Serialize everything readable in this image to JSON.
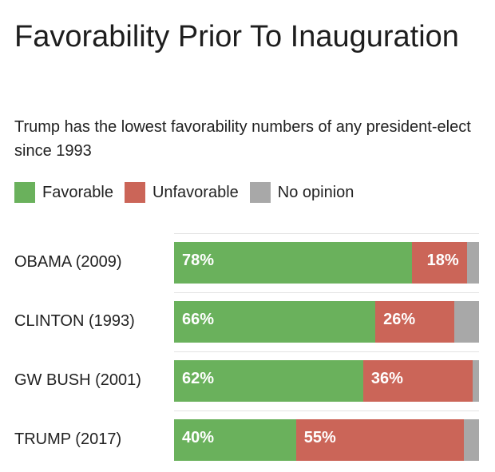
{
  "title": "Favorability Prior To Inauguration",
  "subtitle": "Trump has the lowest favorability numbers of any president-elect since 1993",
  "legend": [
    {
      "label": "Favorable",
      "color": "#6ab15c"
    },
    {
      "label": "Unfavorable",
      "color": "#cb6558"
    },
    {
      "label": "No opinion",
      "color": "#a8a8a8"
    }
  ],
  "chart_data": {
    "type": "bar",
    "orientation": "horizontal",
    "stacked": true,
    "title": "Favorability Prior To Inauguration",
    "subtitle": "Trump has the lowest favorability numbers of any president-elect since 1993",
    "categories": [
      "OBAMA (2009)",
      "CLINTON (1993)",
      "GW BUSH (2001)",
      "TRUMP (2017)"
    ],
    "series": [
      {
        "name": "Favorable",
        "color": "#6ab15c",
        "values": [
          78,
          66,
          62,
          40
        ],
        "labels": [
          "78%",
          "66%",
          "62%",
          "40%"
        ]
      },
      {
        "name": "Unfavorable",
        "color": "#cb6558",
        "values": [
          18,
          26,
          36,
          55
        ],
        "labels": [
          "18%",
          "26%",
          "36%",
          "55%"
        ]
      },
      {
        "name": "No opinion",
        "color": "#a8a8a8",
        "values": [
          4,
          8,
          2,
          5
        ],
        "labels": [
          "",
          "",
          "",
          ""
        ]
      }
    ],
    "xlim": [
      0,
      100
    ],
    "grid": false,
    "legend_position": "top-left"
  }
}
